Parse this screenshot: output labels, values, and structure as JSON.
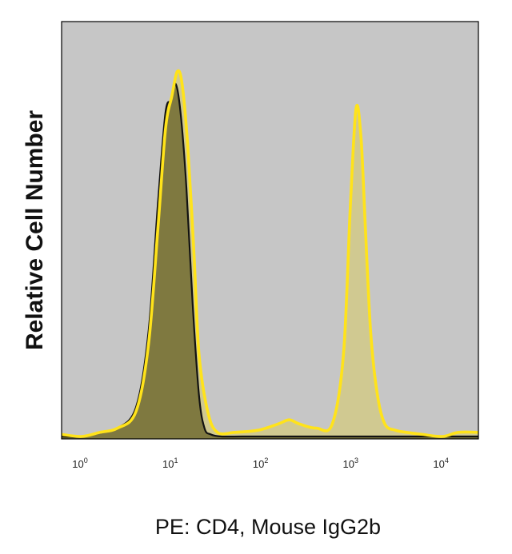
{
  "chart_data": {
    "type": "area",
    "title": "",
    "xlabel": "PE: CD4, Mouse IgG2b",
    "ylabel": "Relative Cell Number",
    "x_scale": "log",
    "xlim": [
      0.6,
      25000
    ],
    "ylim": [
      0,
      1.0
    ],
    "grid": false,
    "legend": "none",
    "x_ticks": [
      {
        "base": "10",
        "exp": "0",
        "value": 1
      },
      {
        "base": "10",
        "exp": "1",
        "value": 10
      },
      {
        "base": "10",
        "exp": "2",
        "value": 100
      },
      {
        "base": "10",
        "exp": "3",
        "value": 1000
      },
      {
        "base": "10",
        "exp": "4",
        "value": 10000
      }
    ],
    "colors": {
      "background": "#c6c6c6",
      "isotype_fill": "#7f7940",
      "isotype_line": "#111111",
      "stained_fill": "#d2c983",
      "stained_line": "#ffe31a"
    },
    "series": [
      {
        "role": "isotype",
        "x": [
          0.6,
          1.0,
          1.6,
          2.5,
          4.0,
          5.5,
          7.0,
          8.5,
          9.8,
          11.0,
          12.5,
          14.5,
          17.0,
          20.0,
          23.0,
          27.0,
          35.0,
          60.0,
          200.0,
          1000.0,
          25000.0
        ],
        "y": [
          0.0,
          0.0,
          0.01,
          0.02,
          0.07,
          0.25,
          0.56,
          0.78,
          0.81,
          0.85,
          0.78,
          0.6,
          0.32,
          0.1,
          0.02,
          0.005,
          0.0,
          0.0,
          0.0,
          0.0,
          0.0
        ]
      },
      {
        "role": "stained",
        "x": [
          0.6,
          1.0,
          1.6,
          2.5,
          4.0,
          5.5,
          7.0,
          8.5,
          10.0,
          11.5,
          13.0,
          15.0,
          17.5,
          20.0,
          25.0,
          32.0,
          50.0,
          90.0,
          150.0,
          200.0,
          260.0,
          400.0,
          600.0,
          800.0,
          950.0,
          1100.0,
          1250.0,
          1400.0,
          1600.0,
          1900.0,
          2300.0,
          3000.0,
          4000.0,
          6000.0,
          10000.0,
          15000.0,
          25000.0
        ],
        "y": [
          0.005,
          0.0,
          0.01,
          0.02,
          0.06,
          0.22,
          0.5,
          0.74,
          0.82,
          0.88,
          0.85,
          0.7,
          0.45,
          0.2,
          0.06,
          0.01,
          0.01,
          0.015,
          0.03,
          0.04,
          0.03,
          0.02,
          0.03,
          0.2,
          0.55,
          0.79,
          0.72,
          0.5,
          0.25,
          0.1,
          0.03,
          0.015,
          0.01,
          0.005,
          0.0,
          0.01,
          0.01
        ]
      }
    ]
  }
}
